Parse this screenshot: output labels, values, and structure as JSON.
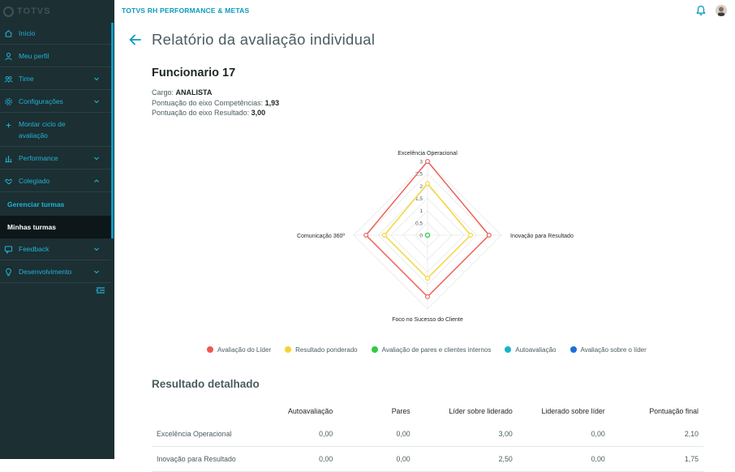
{
  "logo": {
    "text": "TOTVS"
  },
  "header": {
    "title": "TOTVS RH PERFORMANCE & METAS"
  },
  "sidebar": {
    "items": [
      {
        "label": "Início",
        "icon": "home-icon",
        "chevron": false
      },
      {
        "label": "Meu perfil",
        "icon": "user-icon",
        "chevron": false
      },
      {
        "label": "Time",
        "icon": "team-icon",
        "chevron": true
      },
      {
        "label": "Configurações",
        "icon": "gear-icon",
        "chevron": true
      },
      {
        "label": "Montar ciclo de avaliação",
        "icon": "plus-icon",
        "chevron": false
      },
      {
        "label": "Performance",
        "icon": "chart-icon",
        "chevron": true
      },
      {
        "label": "Colegiado",
        "icon": "handshake-icon",
        "chevron": true,
        "expanded": true
      },
      {
        "label": "Feedback",
        "icon": "feedback-icon",
        "chevron": true
      },
      {
        "label": "Desenvolvimento",
        "icon": "bulb-icon",
        "chevron": true
      }
    ],
    "subitems": [
      {
        "label": "Gerenciar turmas",
        "active": false
      },
      {
        "label": "Minhas turmas",
        "active": true
      }
    ]
  },
  "page": {
    "title": "Relatório da avaliação individual",
    "employee": "Funcionario 17",
    "cargo_label": "Cargo:",
    "cargo_value": "ANALISTA",
    "competencias_label": "Pontuação do eixo Competências:",
    "competencias_value": "1,93",
    "resultado_label": "Pontuação do eixo Resultado:",
    "resultado_value": "3,00"
  },
  "chart_data": {
    "type": "radar",
    "axes": [
      "Excelência Operacional",
      "Inovação para Resultado",
      "Foco no Sucesso do Cliente",
      "Comunicação 360º"
    ],
    "ticks": [
      "0",
      "0,5",
      "1",
      "1,5",
      "2",
      "2,5",
      "3"
    ],
    "rmax": 3,
    "series": [
      {
        "name": "Avaliação do Líder",
        "color": "#ee5a50",
        "values": [
          3,
          2.5,
          2.5,
          2.5
        ]
      },
      {
        "name": "Resultado ponderado",
        "color": "#f5d42e",
        "values": [
          2.1,
          1.75,
          1.75,
          1.75
        ]
      },
      {
        "name": "Avaliação de pares e clientes internos",
        "color": "#2fcc3d",
        "values": [
          0,
          0,
          0,
          0
        ]
      },
      {
        "name": "Autoavaliação",
        "color": "#19b3c9",
        "values": [
          0,
          0,
          0,
          0
        ]
      },
      {
        "name": "Avaliação sobre o líder",
        "color": "#1b6fd6",
        "values": [
          0,
          0,
          0,
          0
        ]
      }
    ]
  },
  "details": {
    "title": "Resultado detalhado",
    "columns": [
      "",
      "Autoavaliação",
      "Pares",
      "Líder sobre liderado",
      "Liderado sobre líder",
      "Pontuação final"
    ],
    "rows": [
      [
        "Excelência Operacional",
        "0,00",
        "0,00",
        "3,00",
        "0,00",
        "2,10"
      ],
      [
        "Inovação para Resultado",
        "0,00",
        "0,00",
        "2,50",
        "0,00",
        "1,75"
      ]
    ]
  }
}
